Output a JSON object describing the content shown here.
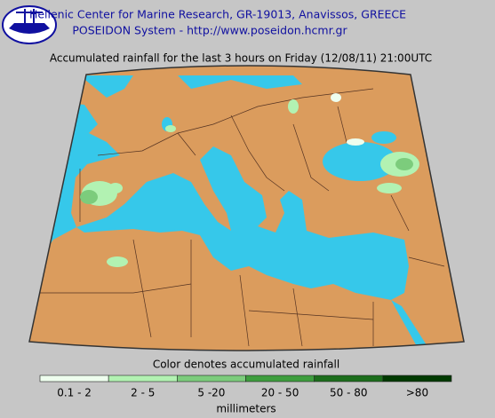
{
  "header": {
    "line1": "Hellenic Center for Marine Research, GR-19013, Anavissos, GREECE",
    "line2": "POSEIDON System - http://www.poseidon.hcmr.gr"
  },
  "title": "Accumulated rainfall for the last 3 hours on Friday (12/08/11) 21:00UTC",
  "legend": {
    "title": "Color denotes accumulated rainfall",
    "items": [
      {
        "label": "0.1 - 2",
        "color": "#eefeee"
      },
      {
        "label": "2 - 5",
        "color": "#b2f2b2"
      },
      {
        "label": "5 -20",
        "color": "#7ccc7c"
      },
      {
        "label": "20 - 50",
        "color": "#3e9e3e"
      },
      {
        "label": "50 - 80",
        "color": "#1c6e1c"
      },
      {
        "label": ">80",
        "color": "#003a00"
      }
    ],
    "unit": "millimeters"
  }
}
